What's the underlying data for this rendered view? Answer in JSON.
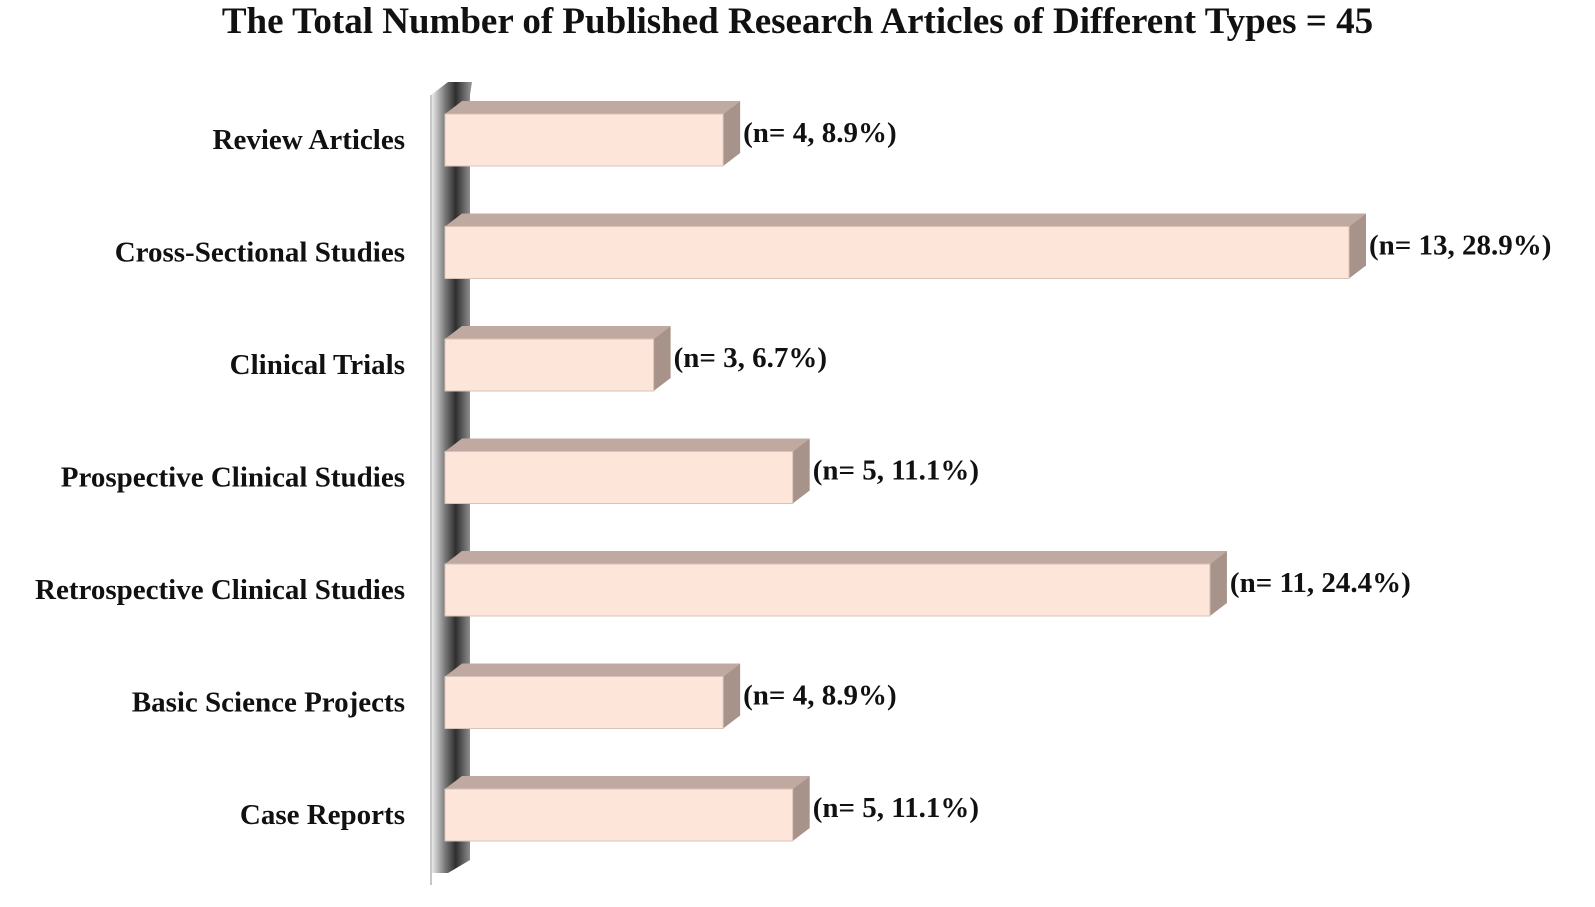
{
  "chart_data": {
    "type": "bar",
    "orientation": "horizontal",
    "title": "The Total Number of Published Research Articles of Different Types  = 45",
    "xlabel": "",
    "ylabel": "",
    "categories": [
      "Review Articles",
      "Cross-Sectional Studies",
      "Clinical Trials",
      "Prospective Clinical Studies",
      "Retrospective Clinical Studies",
      "Basic Science Projects",
      "Case Reports"
    ],
    "values": [
      4,
      13,
      3,
      5,
      11,
      4,
      5
    ],
    "data_labels": [
      "(n= 4, 8.9%)",
      "(n= 13, 28.9%)",
      "(n= 3, 6.7%)",
      "(n= 5, 11.1%)",
      "(n= 11, 24.4%)",
      "(n= 4, 8.9%)",
      "(n= 5, 11.1%)"
    ],
    "xlim": [
      0,
      13
    ],
    "grid": false,
    "legend": "none",
    "style": "3d",
    "colors": {
      "bar_front": "#fde5da",
      "bar_top": "#bfa9a0",
      "bar_side": "#a8938a",
      "bar_edge": "#d9c3b8",
      "axis_wall": "#555555"
    }
  }
}
